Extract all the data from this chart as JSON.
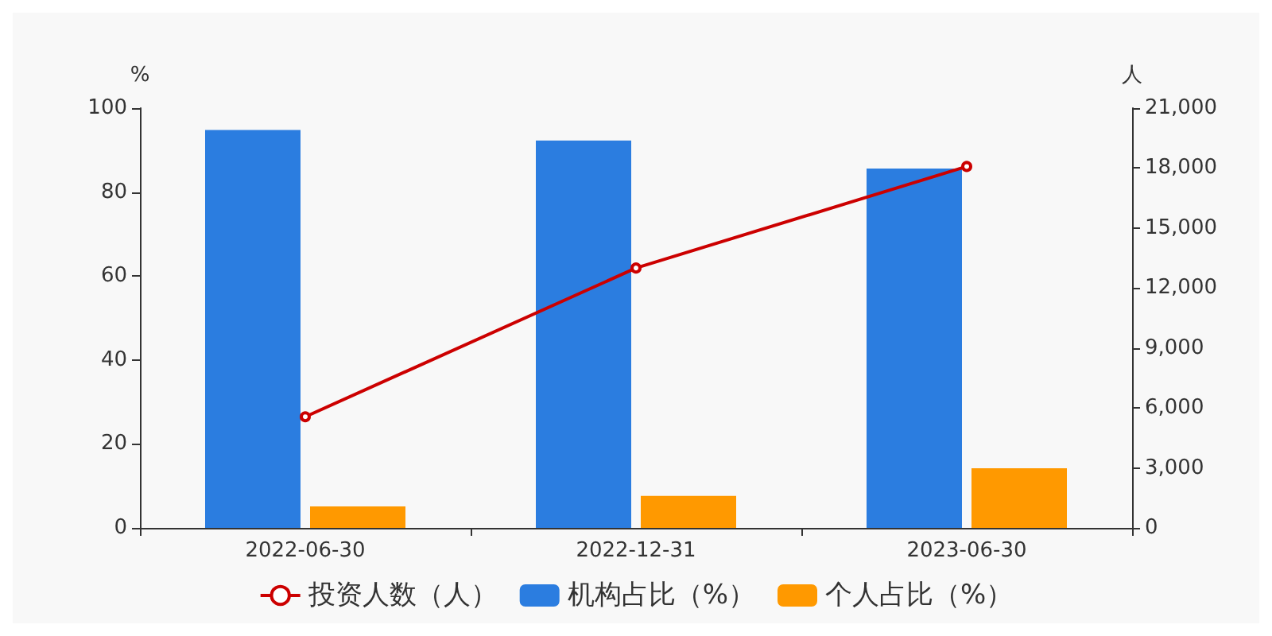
{
  "chart_data": {
    "type": "bar",
    "ylabel": "%",
    "y2label": "人",
    "categories": [
      "2022-06-30",
      "2022-12-31",
      "2023-06-30"
    ],
    "series": [
      {
        "name": "投资人数（人）",
        "type": "line",
        "axis": "y2",
        "color": "#cc0000",
        "marker": "circle",
        "values": [
          5560,
          13000,
          18080
        ]
      },
      {
        "name": "机构占比（%）",
        "color": "#2b7de0",
        "values": [
          94.8,
          92.3,
          85.6
        ]
      },
      {
        "name": "个人占比（%）",
        "color": "#ff9900",
        "values": [
          5.1,
          7.6,
          14.2
        ]
      }
    ],
    "ylim": [
      0,
      100
    ],
    "yticks": [
      0,
      20,
      40,
      60,
      80,
      100
    ],
    "y2lim": [
      0,
      21000
    ],
    "y2ticks": [
      0,
      {
        "value": 3000,
        "label": "3,000"
      },
      {
        "value": 6000,
        "label": "6,000"
      },
      {
        "value": 9000,
        "label": "9,000"
      },
      {
        "value": 12000,
        "label": "12,000"
      },
      {
        "value": 15000,
        "label": "15,000"
      },
      {
        "value": 18000,
        "label": "18,000"
      },
      {
        "value": 21000,
        "label": "21,000"
      }
    ],
    "grid": false,
    "legend": "bottom"
  }
}
